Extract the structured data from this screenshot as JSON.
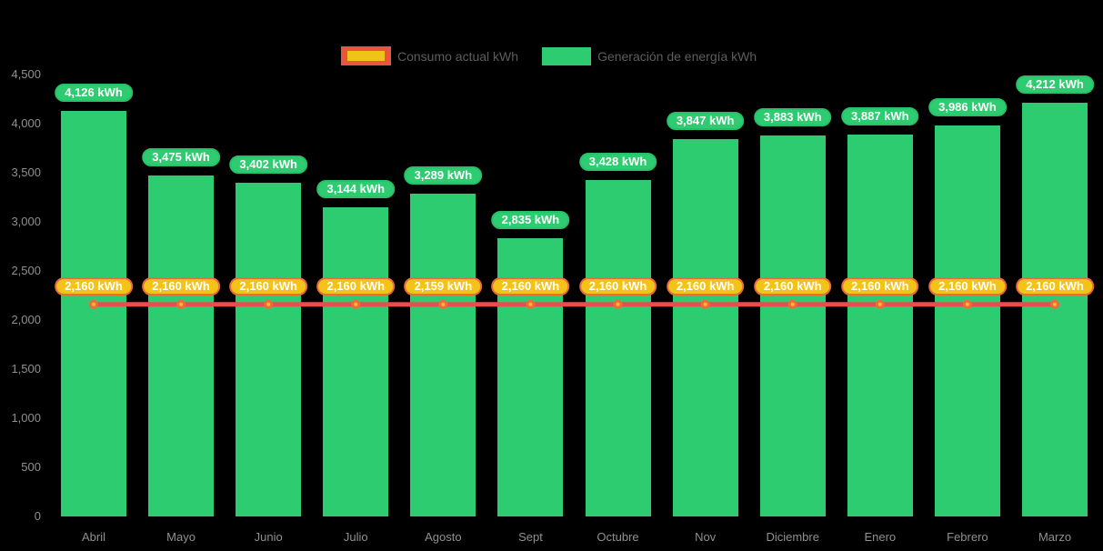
{
  "chart_data": {
    "type": "bar",
    "title": "",
    "categories": [
      "Abril",
      "Mayo",
      "Junio",
      "Julio",
      "Agosto",
      "Sept",
      "Octubre",
      "Nov",
      "Diciembre",
      "Enero",
      "Febrero",
      "Marzo"
    ],
    "series": [
      {
        "name": "Consumo actual kWh",
        "type": "line",
        "values": [
          2160,
          2160,
          2160,
          2160,
          2159,
          2160,
          2160,
          2160,
          2160,
          2160,
          2160,
          2160
        ],
        "labels": [
          "2,160 kWh",
          "2,160 kWh",
          "2,160 kWh",
          "2,160 kWh",
          "2,159 kWh",
          "2,160 kWh",
          "2,160 kWh",
          "2,160 kWh",
          "2,160 kWh",
          "2,160 kWh",
          "2,160 kWh",
          "2,160 kWh"
        ],
        "line_color": "#e5504e",
        "marker_fill": "#fcb821",
        "marker_stroke": "#ef6a3d",
        "label_bg": "#f5c318",
        "label_border": "#ef6a3d",
        "label_text_color": "#ffffff"
      },
      {
        "name": "Generación de energía kWh",
        "type": "bar",
        "values": [
          4126,
          3475,
          3402,
          3144,
          3289,
          2835,
          3428,
          3847,
          3883,
          3887,
          3986,
          4212
        ],
        "labels": [
          "4,126 kWh",
          "3,475 kWh",
          "3,402 kWh",
          "3,144 kWh",
          "3,289 kWh",
          "2,835 kWh",
          "3,428 kWh",
          "3,847 kWh",
          "3,883 kWh",
          "3,887 kWh",
          "3,986 kWh",
          "4,212 kWh"
        ],
        "bar_color": "#2ecc71",
        "label_bg": "#2ecc71",
        "label_text_color": "#ffffff"
      }
    ],
    "ylim": [
      0,
      4500
    ],
    "y_ticks": [
      0,
      500,
      1000,
      1500,
      2000,
      2500,
      3000,
      3500,
      4000,
      4500
    ],
    "y_tick_labels": [
      "0",
      "500",
      "1,000",
      "1,500",
      "2,000",
      "2,500",
      "3,000",
      "3,500",
      "4,000",
      "4,500"
    ],
    "value_suffix": " kWh",
    "legend_position": "top",
    "grid": false,
    "background_color": "#000000",
    "axis_text_color": "#8f8f8f",
    "legend_text_color": "#5d5d5d"
  },
  "legend": {
    "items": [
      {
        "label": "Consumo actual kWh"
      },
      {
        "label": "Generación de energía kWh"
      }
    ]
  }
}
